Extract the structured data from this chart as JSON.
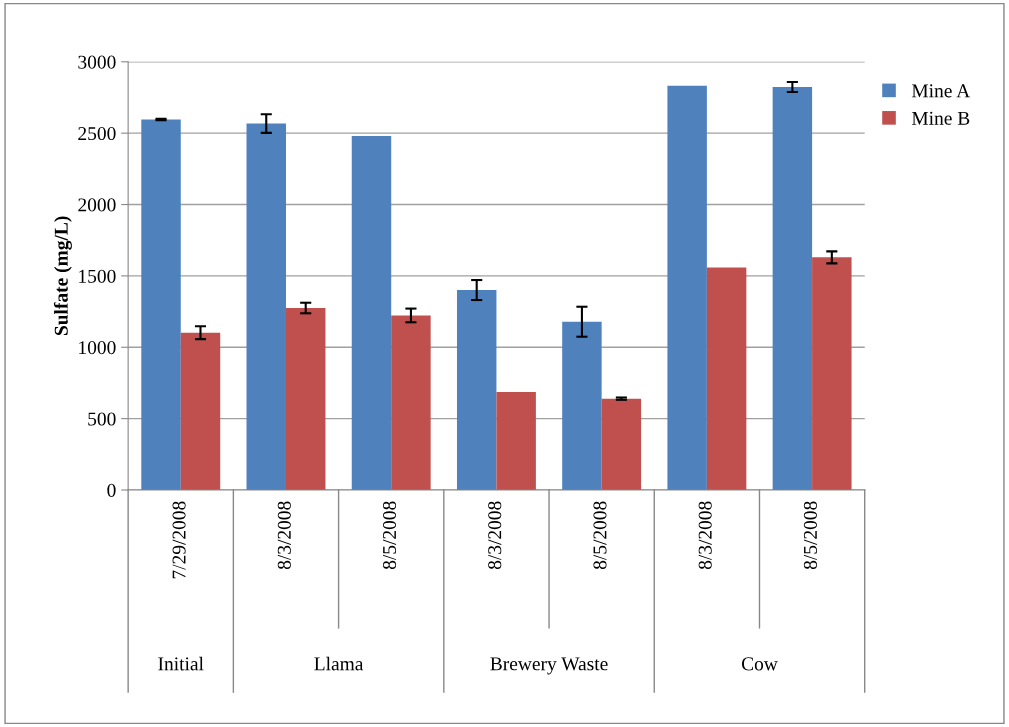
{
  "chart_data": {
    "type": "bar",
    "ylabel": "Sulfate (mg/L)",
    "categories": [
      "7/29/2008",
      "8/3/2008",
      "8/5/2008",
      "8/3/2008",
      "8/5/2008",
      "8/3/2008",
      "8/5/2008"
    ],
    "annotations": [
      "Initial",
      "Llama",
      "Brewery Waste",
      "Cow"
    ],
    "series": [
      {
        "name": "Mine A",
        "color": "#4f81bd",
        "values": [
          2595,
          2567,
          2480,
          1401,
          1179,
          2832,
          2823
        ],
        "errors": [
          5,
          65,
          null,
          70,
          105,
          null,
          35
        ]
      },
      {
        "name": "Mine B",
        "color": "#c0504d",
        "values": [
          1102,
          1275,
          1223,
          687,
          640,
          1558,
          1630
        ],
        "errors": [
          45,
          37,
          48,
          null,
          8,
          null,
          42
        ]
      }
    ],
    "ylim": [
      0,
      3000
    ],
    "yticks": [
      0,
      500,
      1000,
      1500,
      2000,
      2500,
      3000
    ],
    "grid": "y",
    "legend": "top right"
  }
}
